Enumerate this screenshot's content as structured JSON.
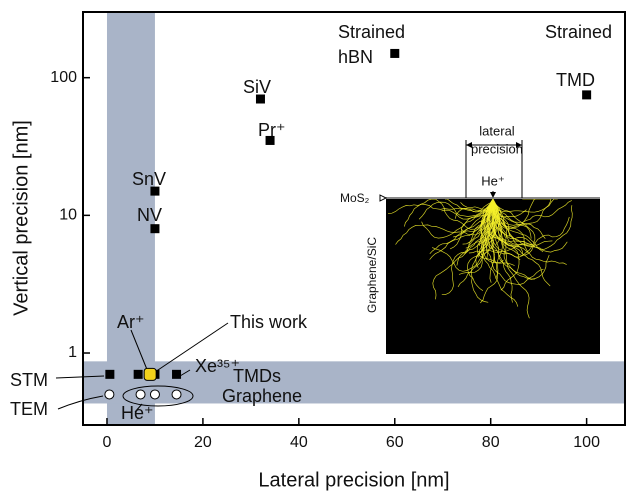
{
  "chart_data": {
    "type": "scatter",
    "x_label": "Lateral precision [nm]",
    "y_label": "Vertical precision [nm]",
    "xlim": [
      -5,
      108
    ],
    "xticks": [
      0,
      20,
      40,
      60,
      80,
      100
    ],
    "ylim": [
      0.3,
      300
    ],
    "yticks": [
      1,
      10,
      100
    ],
    "y_scale": "log",
    "band_color": "#a9b4c8",
    "shaded_regions": [
      {
        "axis": "x",
        "range": [
          0,
          10
        ]
      },
      {
        "axis": "y",
        "range": [
          0.43,
          0.87
        ]
      }
    ],
    "points": [
      {
        "x": 0.6,
        "y": 0.7,
        "marker": "square",
        "color": "#000000"
      },
      {
        "x": 0.5,
        "y": 0.5,
        "marker": "circle",
        "color": "#ffffff"
      },
      {
        "x": 6.5,
        "y": 0.7,
        "marker": "square",
        "color": "#000000"
      },
      {
        "x": 10,
        "y": 0.7,
        "marker": "square",
        "color": "#000000"
      },
      {
        "x": 14.5,
        "y": 0.7,
        "marker": "square",
        "color": "#000000"
      },
      {
        "x": 9,
        "y": 0.7,
        "marker": "square",
        "color": "#f2d21b"
      },
      {
        "x": 7,
        "y": 0.5,
        "marker": "circle",
        "color": "#ffffff"
      },
      {
        "x": 10,
        "y": 0.5,
        "marker": "circle",
        "color": "#ffffff"
      },
      {
        "x": 14.5,
        "y": 0.5,
        "marker": "circle",
        "color": "#ffffff"
      },
      {
        "x": 10,
        "y": 15,
        "marker": "square",
        "color": "#000000"
      },
      {
        "x": 10,
        "y": 8,
        "marker": "square",
        "color": "#000000"
      },
      {
        "x": 32,
        "y": 70,
        "marker": "square",
        "color": "#000000"
      },
      {
        "x": 34,
        "y": 35,
        "marker": "square",
        "color": "#000000"
      },
      {
        "x": 60,
        "y": 150,
        "marker": "square",
        "color": "#000000"
      },
      {
        "x": 100,
        "y": 75,
        "marker": "square",
        "color": "#000000"
      }
    ],
    "annotations": [
      "STM",
      "TEM",
      "Ar⁺",
      "This work",
      "Xe³⁵⁺",
      "TMDs",
      "Graphene",
      "He⁺",
      "SnV",
      "NV",
      "SiV",
      "Pr⁺",
      "Strained",
      "hBN",
      "Strained",
      "TMD"
    ],
    "inset": {
      "labels": [
        "lateral",
        "precision",
        "He⁺",
        "MoS₂",
        "Graphene/SiC"
      ]
    }
  }
}
